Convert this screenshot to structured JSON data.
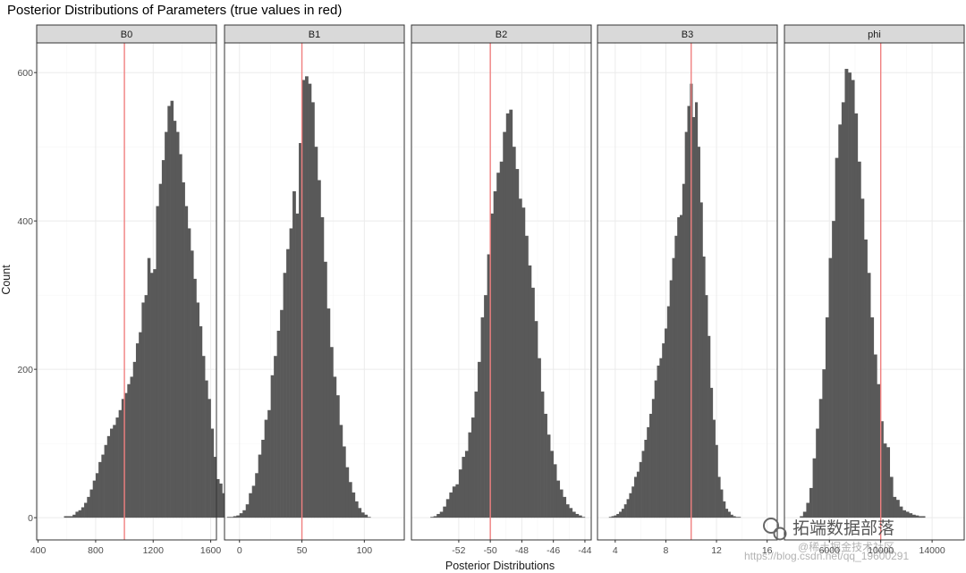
{
  "chart_data": {
    "type": "bar",
    "title": "Posterior Distributions of Parameters (true values in red)",
    "xlabel": "Posterior Distributions",
    "ylabel": "Count",
    "ylim": [
      -30,
      640
    ],
    "y_ticks": [
      0,
      200,
      400,
      600
    ],
    "grid": true,
    "reference_line_color": "#f08080",
    "bar_color": "#595959",
    "panels": [
      {
        "name": "B0",
        "xlim": [
          390,
          1640
        ],
        "x_ticks": [
          400,
          800,
          1200,
          1600
        ],
        "x_tick_labels": [
          "400",
          "800",
          "1200",
          "1600"
        ],
        "true_value": 1000,
        "bin_start": 580,
        "bin_width": 20,
        "counts": [
          2,
          2,
          2,
          4,
          8,
          10,
          14,
          20,
          28,
          38,
          50,
          60,
          75,
          85,
          98,
          110,
          120,
          125,
          135,
          145,
          160,
          168,
          180,
          190,
          210,
          235,
          250,
          290,
          300,
          350,
          330,
          335,
          420,
          450,
          482,
          520,
          555,
          562,
          535,
          520,
          490,
          452,
          420,
          390,
          360,
          322,
          290,
          258,
          218,
          185,
          160,
          120,
          82,
          52,
          46,
          33,
          19,
          12,
          9,
          4,
          2,
          1
        ]
      },
      {
        "name": "B1",
        "xlim": [
          -12,
          132
        ],
        "x_ticks": [
          0,
          50,
          100
        ],
        "x_tick_labels": [
          "0",
          "50",
          "100"
        ],
        "true_value": 50,
        "bin_start": -10,
        "bin_width": 2.5,
        "counts": [
          1,
          1,
          2,
          3,
          6,
          10,
          18,
          33,
          43,
          60,
          85,
          105,
          132,
          145,
          192,
          218,
          252,
          280,
          330,
          362,
          390,
          440,
          410,
          505,
          590,
          595,
          585,
          560,
          500,
          455,
          405,
          345,
          282,
          230,
          190,
          165,
          125,
          96,
          68,
          48,
          34,
          22,
          13,
          7,
          4,
          1
        ]
      },
      {
        "name": "B2",
        "xlim": [
          -55,
          -43.6
        ],
        "x_ticks": [
          -52,
          -50,
          -48,
          -46,
          -44
        ],
        "x_tick_labels": [
          "-52",
          "-50",
          "-48",
          "-46",
          "-44"
        ],
        "true_value": -50,
        "bin_start": -53.8,
        "bin_width": 0.2,
        "counts": [
          1,
          2,
          5,
          8,
          15,
          25,
          34,
          42,
          45,
          65,
          82,
          90,
          115,
          135,
          170,
          210,
          270,
          300,
          355,
          410,
          440,
          465,
          480,
          520,
          545,
          550,
          500,
          470,
          430,
          418,
          380,
          340,
          310,
          265,
          215,
          170,
          140,
          112,
          90,
          72,
          50,
          38,
          28,
          18,
          13,
          8,
          5,
          3,
          1
        ]
      },
      {
        "name": "B3",
        "xlim": [
          2.6,
          16.8
        ],
        "x_ticks": [
          4,
          8,
          12,
          16
        ],
        "x_tick_labels": [
          "4",
          "8",
          "12",
          "16"
        ],
        "true_value": 10,
        "bin_start": 3.5,
        "bin_width": 0.2,
        "counts": [
          1,
          2,
          3,
          5,
          8,
          12,
          18,
          25,
          33,
          42,
          55,
          62,
          75,
          90,
          105,
          122,
          140,
          160,
          185,
          205,
          215,
          235,
          255,
          285,
          320,
          350,
          380,
          405,
          408,
          450,
          520,
          555,
          585,
          540,
          560,
          500,
          425,
          352,
          300,
          245,
          175,
          132,
          98,
          55,
          38,
          22,
          12,
          8,
          4,
          2,
          1,
          1
        ]
      },
      {
        "name": "phi",
        "xlim": [
          2500,
          16500
        ],
        "x_ticks": [
          6000,
          10000,
          14000
        ],
        "x_tick_labels": [
          "6000",
          "10000",
          "14000"
        ],
        "true_value": 10000,
        "bin_start": 3700,
        "bin_width": 250,
        "counts": [
          2,
          8,
          20,
          40,
          80,
          120,
          160,
          200,
          270,
          350,
          400,
          485,
          530,
          560,
          605,
          600,
          590,
          545,
          480,
          430,
          375,
          330,
          270,
          220,
          180,
          130,
          100,
          95,
          55,
          28,
          24,
          15,
          10,
          8,
          6,
          4,
          3,
          2,
          2
        ]
      }
    ]
  },
  "watermark": {
    "brand": "拓端数据部落",
    "community": "@稀土掘金技术社区",
    "url": "https://blog.csdn.net/qq_19600291"
  }
}
